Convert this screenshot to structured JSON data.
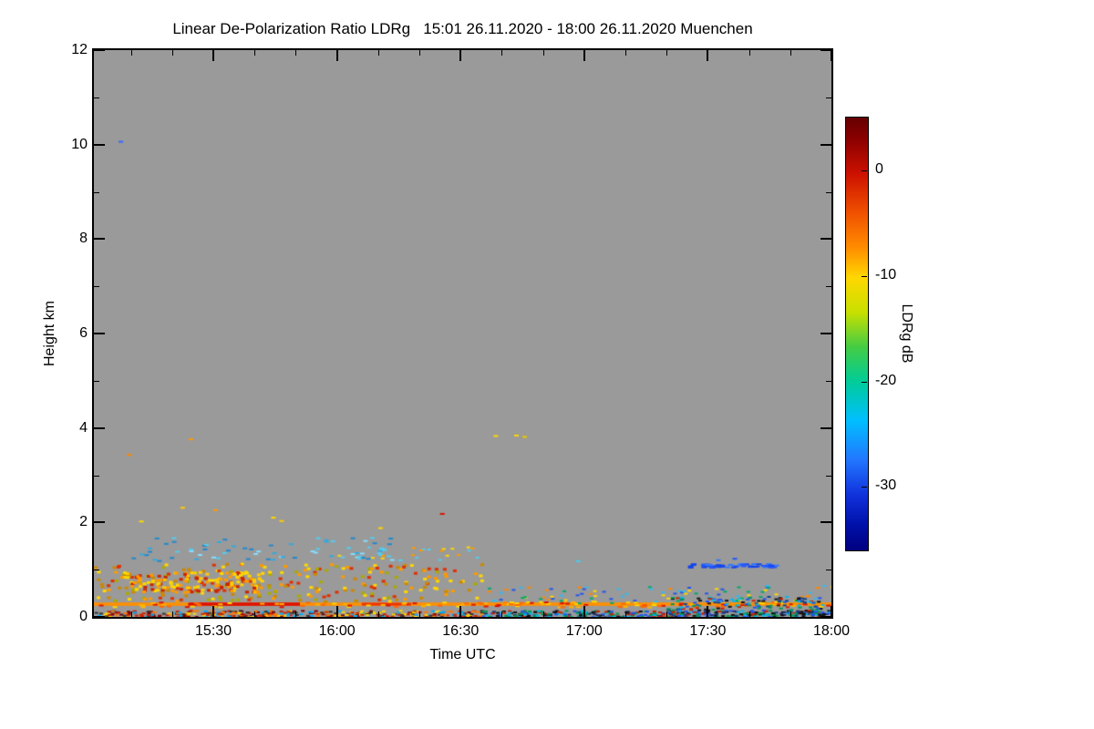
{
  "chart_data": {
    "type": "heatmap",
    "title": "Linear De-Polarization Ratio LDRg   15:01 26.11.2020 - 18:00 26.11.2020 Muenchen",
    "xlabel": "Time UTC",
    "ylabel": "Height km",
    "plot_bg": "#9a9a9a",
    "frame_color": "#000000",
    "x_axis": {
      "range_minutes": [
        1,
        180
      ],
      "ticks": [
        {
          "label": "15:30",
          "t": 30
        },
        {
          "label": "16:00",
          "t": 60
        },
        {
          "label": "16:30",
          "t": 90
        },
        {
          "label": "17:00",
          "t": 120
        },
        {
          "label": "17:30",
          "t": 150
        },
        {
          "label": "18:00",
          "t": 180
        }
      ],
      "minor_step_minutes": 10
    },
    "y_axis": {
      "lim": [
        0,
        12
      ],
      "ticks": [
        0,
        2,
        4,
        6,
        8,
        10,
        12
      ],
      "minor_step_km": 1
    },
    "colorbar": {
      "label": "LDRg dB",
      "vmax": 5,
      "vmin": -36,
      "ticks": [
        0,
        -10,
        -20,
        -30
      ],
      "stops": [
        [
          0.0,
          "#650000"
        ],
        [
          0.05,
          "#8b0000"
        ],
        [
          0.13,
          "#cc1100"
        ],
        [
          0.22,
          "#f05000"
        ],
        [
          0.3,
          "#ff8c00"
        ],
        [
          0.37,
          "#ffd700"
        ],
        [
          0.45,
          "#c8e000"
        ],
        [
          0.53,
          "#44cc44"
        ],
        [
          0.61,
          "#00cc99"
        ],
        [
          0.7,
          "#00bfff"
        ],
        [
          0.79,
          "#2277ff"
        ],
        [
          0.87,
          "#1133dd"
        ],
        [
          0.94,
          "#0011aa"
        ],
        [
          1.0,
          "#000080"
        ]
      ]
    },
    "features": [
      {
        "kind": "hline",
        "t0": 1,
        "t1": 180,
        "h": 0.27,
        "thick_km": 0.07,
        "color": "#ff9000"
      },
      {
        "kind": "hline",
        "t0": 24,
        "t1": 51,
        "h": 0.27,
        "thick_km": 0.07,
        "color": "#dd1100"
      },
      {
        "kind": "hline",
        "t0": 66,
        "t1": 78,
        "h": 0.27,
        "thick_km": 0.06,
        "color": "#ee3300"
      },
      {
        "kind": "speckle",
        "seed": 11,
        "t0": 1,
        "t1": 180,
        "h0": 0.22,
        "h1": 0.33,
        "count": 120,
        "colors": [
          "#ff6600",
          "#ffb300",
          "#dd1100",
          "#ffd700"
        ],
        "w": 5,
        "hp": 2
      },
      {
        "kind": "speckle",
        "seed": 12,
        "t0": 1,
        "t1": 95,
        "h0": 0.01,
        "h1": 0.15,
        "count": 380,
        "colors": [
          "#cc2200",
          "#ff7700",
          "#7a0000",
          "#ffd700",
          "#333333",
          "#00aaff"
        ],
        "w": 4,
        "hp": 2
      },
      {
        "kind": "speckle",
        "seed": 13,
        "t0": 95,
        "t1": 180,
        "h0": 0.01,
        "h1": 0.15,
        "count": 360,
        "colors": [
          "#2255ee",
          "#00bbee",
          "#009955",
          "#203070",
          "#cc2200",
          "#111111"
        ],
        "w": 4,
        "hp": 2
      },
      {
        "kind": "speckle",
        "seed": 14,
        "t0": 1,
        "t1": 95,
        "h0": 0.35,
        "h1": 1.15,
        "count": 240,
        "colors": [
          "#ffd700",
          "#ff9900",
          "#cc8800",
          "#e03000",
          "#aaaa00"
        ],
        "w": 4,
        "hp": 3
      },
      {
        "kind": "speckle",
        "seed": 15,
        "t0": 8,
        "t1": 42,
        "h0": 0.55,
        "h1": 0.98,
        "count": 150,
        "colors": [
          "#ffd700",
          "#ffcc00",
          "#ff9900",
          "#cc2200"
        ],
        "w": 4,
        "hp": 3
      },
      {
        "kind": "speckle",
        "seed": 16,
        "t0": 5,
        "t1": 75,
        "h0": 1.2,
        "h1": 1.7,
        "count": 70,
        "colors": [
          "#55ccee",
          "#33aadd",
          "#88ddff",
          "#2288cc"
        ],
        "w": 5,
        "hp": 2
      },
      {
        "kind": "speckle",
        "seed": 20,
        "t0": 60,
        "t1": 95,
        "h0": 1.2,
        "h1": 1.5,
        "count": 25,
        "colors": [
          "#55ccee",
          "#ffd700",
          "#ff9900"
        ],
        "w": 4,
        "hp": 2
      },
      {
        "kind": "speckle",
        "seed": 17,
        "t0": 95,
        "t1": 180,
        "h0": 0.3,
        "h1": 0.68,
        "count": 110,
        "colors": [
          "#33bbee",
          "#2255ee",
          "#00aa66",
          "#ffd700",
          "#ff8800"
        ],
        "w": 4,
        "hp": 2
      },
      {
        "kind": "speckle",
        "seed": 18,
        "t0": 144,
        "t1": 166,
        "h0": 1.06,
        "h1": 1.14,
        "count": 55,
        "colors": [
          "#2255ff",
          "#3377ff",
          "#1144ee"
        ],
        "w": 6,
        "hp": 2
      },
      {
        "kind": "speckle",
        "seed": 19,
        "t0": 140,
        "t1": 178,
        "h0": 0.04,
        "h1": 0.45,
        "count": 150,
        "colors": [
          "#2255ee",
          "#00bbee",
          "#114488",
          "#009955",
          "#cc2200",
          "#111111"
        ],
        "w": 4,
        "hp": 2
      },
      {
        "kind": "points",
        "w": 5,
        "hp": 2,
        "pts": [
          [
            7,
            10.08,
            "#3366ff"
          ],
          [
            9,
            3.45,
            "#ff8800"
          ],
          [
            24,
            3.78,
            "#ff9900"
          ],
          [
            12,
            2.04,
            "#ffd700"
          ],
          [
            22,
            2.33,
            "#ffcc00"
          ],
          [
            30,
            2.28,
            "#ff9900"
          ],
          [
            44,
            2.12,
            "#ffd700"
          ],
          [
            46,
            2.05,
            "#ffcc00"
          ],
          [
            70,
            1.9,
            "#ffd700"
          ],
          [
            70,
            1.35,
            "#55ccee"
          ],
          [
            85,
            2.2,
            "#dd1100"
          ],
          [
            98,
            3.85,
            "#ffd700"
          ],
          [
            103,
            3.86,
            "#ffd700"
          ],
          [
            105,
            3.83,
            "#e8c800"
          ],
          [
            118,
            1.2,
            "#44ccee"
          ],
          [
            152,
            1.22,
            "#3377ff"
          ],
          [
            156,
            1.25,
            "#2255ff"
          ]
        ]
      }
    ]
  }
}
